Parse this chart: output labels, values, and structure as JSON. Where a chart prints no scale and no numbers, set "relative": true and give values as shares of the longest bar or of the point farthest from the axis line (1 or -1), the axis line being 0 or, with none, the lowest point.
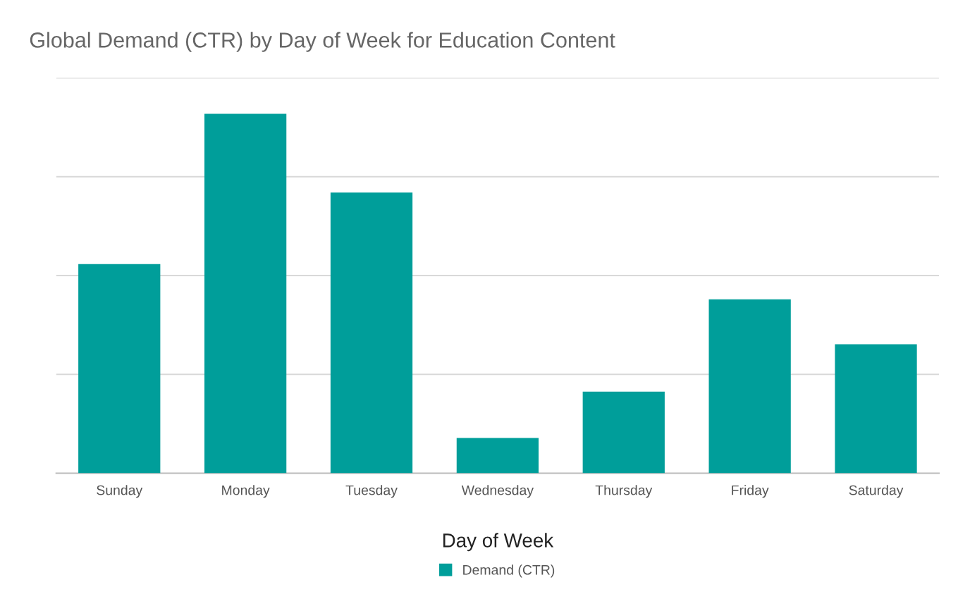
{
  "chart_data": {
    "type": "bar",
    "title": "Global Demand (CTR) by Day of Week for Education Content",
    "xlabel": "Day of Week",
    "categories": [
      "Sunday",
      "Monday",
      "Tuesday",
      "Wednesday",
      "Thursday",
      "Friday",
      "Saturday"
    ],
    "series": [
      {
        "name": "Demand (CTR)",
        "color": "#009e9a",
        "values": [
          0.582,
          1,
          0.781,
          0.098,
          0.227,
          0.484,
          0.359
        ]
      }
    ],
    "relative": true,
    "grid": "y",
    "legend": "bottom"
  }
}
